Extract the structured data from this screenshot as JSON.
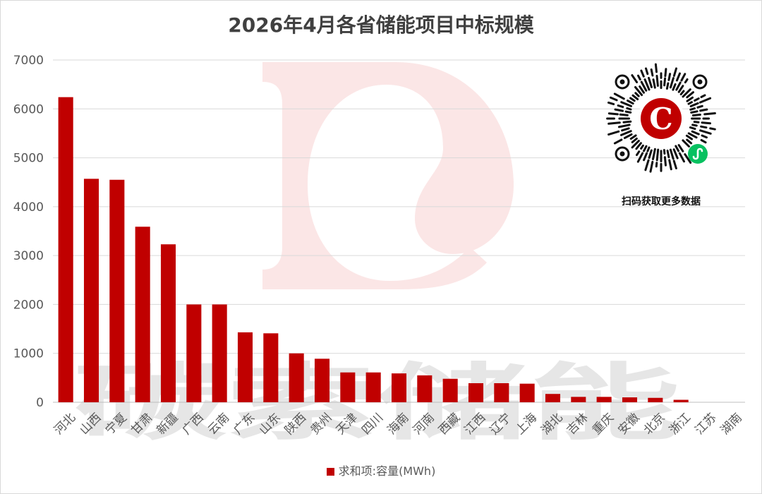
{
  "chart_data": {
    "type": "bar",
    "title": "2026年4月各省储能项目中标规模",
    "categories": [
      "河北",
      "山西",
      "宁夏",
      "甘肃",
      "新疆",
      "广西",
      "云南",
      "广东",
      "山东",
      "陕西",
      "贵州",
      "天津",
      "四川",
      "海南",
      "河南",
      "西藏",
      "江西",
      "辽宁",
      "上海",
      "湖北",
      "吉林",
      "重庆",
      "安徽",
      "北京",
      "浙江",
      "江苏",
      "湖南"
    ],
    "series": [
      {
        "name": "求和项:容量(MWh)",
        "color": "#c00000",
        "values": [
          6240,
          4570,
          4550,
          3590,
          3230,
          2000,
          2000,
          1430,
          1410,
          1000,
          890,
          610,
          610,
          590,
          550,
          480,
          390,
          390,
          380,
          170,
          110,
          110,
          100,
          90,
          50,
          0,
          0
        ]
      }
    ],
    "ylim": [
      0,
      7000
    ],
    "yticks": [
      0,
      1000,
      2000,
      3000,
      4000,
      5000,
      6000,
      7000
    ],
    "ytick_labels": [
      "0",
      "1000",
      "2000",
      "3000",
      "4000",
      "5000",
      "6000",
      "7000"
    ],
    "xlabel": "",
    "ylabel": "",
    "grid": true,
    "legend_position": "bottom"
  },
  "qr": {
    "caption": "扫码获取更多数据",
    "logo_letter": "C",
    "icon": "mini-program-qr-icon"
  },
  "watermark": {
    "text": "碳索储能",
    "logo_letter": "C"
  },
  "colors": {
    "bar": "#c00000",
    "watermark_logo": "#f8dede",
    "watermark_text": "#e6e6e6",
    "mini_program_badge": "#07c160"
  }
}
